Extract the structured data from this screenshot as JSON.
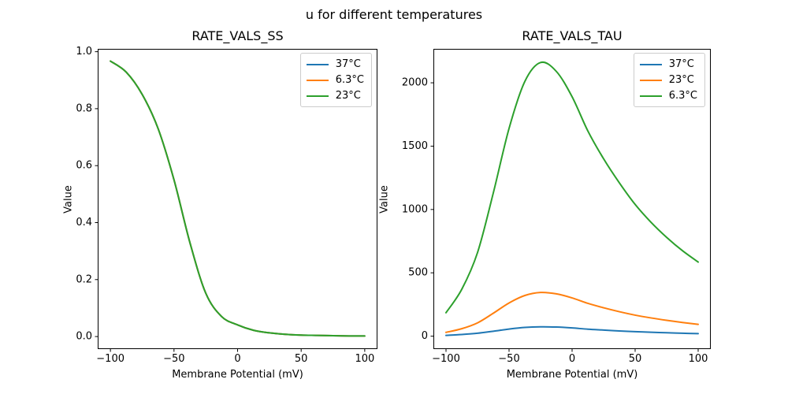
{
  "figure": {
    "suptitle": "u for different temperatures",
    "background": "#ffffff",
    "text_color": "#000000"
  },
  "colors": {
    "blue": "#1f77b4",
    "orange": "#ff7f0e",
    "green": "#2ca02c"
  },
  "chart_data": [
    {
      "type": "line",
      "title": "RATE_VALS_SS",
      "xlabel": "Membrane Potential (mV)",
      "ylabel": "Value",
      "legend_position": "upper right",
      "grid": false,
      "xlim": [
        -110,
        110
      ],
      "ylim": [
        -0.044,
        1.01
      ],
      "xticks": [
        -100,
        -50,
        0,
        50,
        100
      ],
      "xtick_labels": [
        "−100",
        "−50",
        "0",
        "50",
        "100"
      ],
      "yticks": [
        0.0,
        0.2,
        0.4,
        0.6,
        0.8,
        1.0
      ],
      "ytick_labels": [
        "0.0",
        "0.2",
        "0.4",
        "0.6",
        "0.8",
        "1.0"
      ],
      "x": [
        -100,
        -87.5,
        -75,
        -62.5,
        -50,
        -37.5,
        -25,
        -12.5,
        0,
        12.5,
        25,
        37.5,
        50,
        62.5,
        75,
        87.5,
        100
      ],
      "overlap_note": "all three temperature curves coincide exactly; topmost (green) visible",
      "series": [
        {
          "name": "37°C",
          "color": "#1f77b4",
          "values": [
            0.967,
            0.928,
            0.85,
            0.73,
            0.55,
            0.33,
            0.152,
            0.07,
            0.041,
            0.022,
            0.013,
            0.008,
            0.005,
            0.004,
            0.003,
            0.002,
            0.002
          ]
        },
        {
          "name": "6.3°C",
          "color": "#ff7f0e",
          "values": [
            0.967,
            0.928,
            0.85,
            0.73,
            0.55,
            0.33,
            0.152,
            0.07,
            0.041,
            0.022,
            0.013,
            0.008,
            0.005,
            0.004,
            0.003,
            0.002,
            0.002
          ]
        },
        {
          "name": "23°C",
          "color": "#2ca02c",
          "values": [
            0.967,
            0.928,
            0.85,
            0.73,
            0.55,
            0.33,
            0.152,
            0.07,
            0.041,
            0.022,
            0.013,
            0.008,
            0.005,
            0.004,
            0.003,
            0.002,
            0.002
          ]
        }
      ]
    },
    {
      "type": "line",
      "title": "RATE_VALS_TAU",
      "xlabel": "Membrane Potential (mV)",
      "ylabel": "Value",
      "legend_position": "upper right",
      "grid": false,
      "xlim": [
        -110,
        110
      ],
      "ylim": [
        -102,
        2268
      ],
      "xticks": [
        -100,
        -50,
        0,
        50,
        100
      ],
      "xtick_labels": [
        "−100",
        "−50",
        "0",
        "50",
        "100"
      ],
      "yticks": [
        0,
        500,
        1000,
        1500,
        2000
      ],
      "ytick_labels": [
        "0",
        "500",
        "1000",
        "1500",
        "2000"
      ],
      "x": [
        -100,
        -87.5,
        -75,
        -62.5,
        -50,
        -37.5,
        -25,
        -12.5,
        0,
        12.5,
        25,
        37.5,
        50,
        62.5,
        75,
        87.5,
        100
      ],
      "series": [
        {
          "name": "37°C",
          "color": "#1f77b4",
          "values": [
            6,
            13,
            23,
            39,
            56,
            69,
            74,
            72,
            65,
            55,
            48,
            41,
            36,
            31,
            27,
            23,
            20
          ]
        },
        {
          "name": "23°C",
          "color": "#ff7f0e",
          "values": [
            30,
            59,
            105,
            181,
            262,
            321,
            345,
            334,
            302,
            259,
            224,
            193,
            166,
            144,
            125,
            108,
            93
          ]
        },
        {
          "name": "6.3°C",
          "color": "#2ca02c",
          "values": [
            185,
            370,
            660,
            1130,
            1640,
            2010,
            2160,
            2090,
            1890,
            1620,
            1400,
            1210,
            1040,
            900,
            780,
            675,
            585
          ]
        }
      ]
    }
  ]
}
